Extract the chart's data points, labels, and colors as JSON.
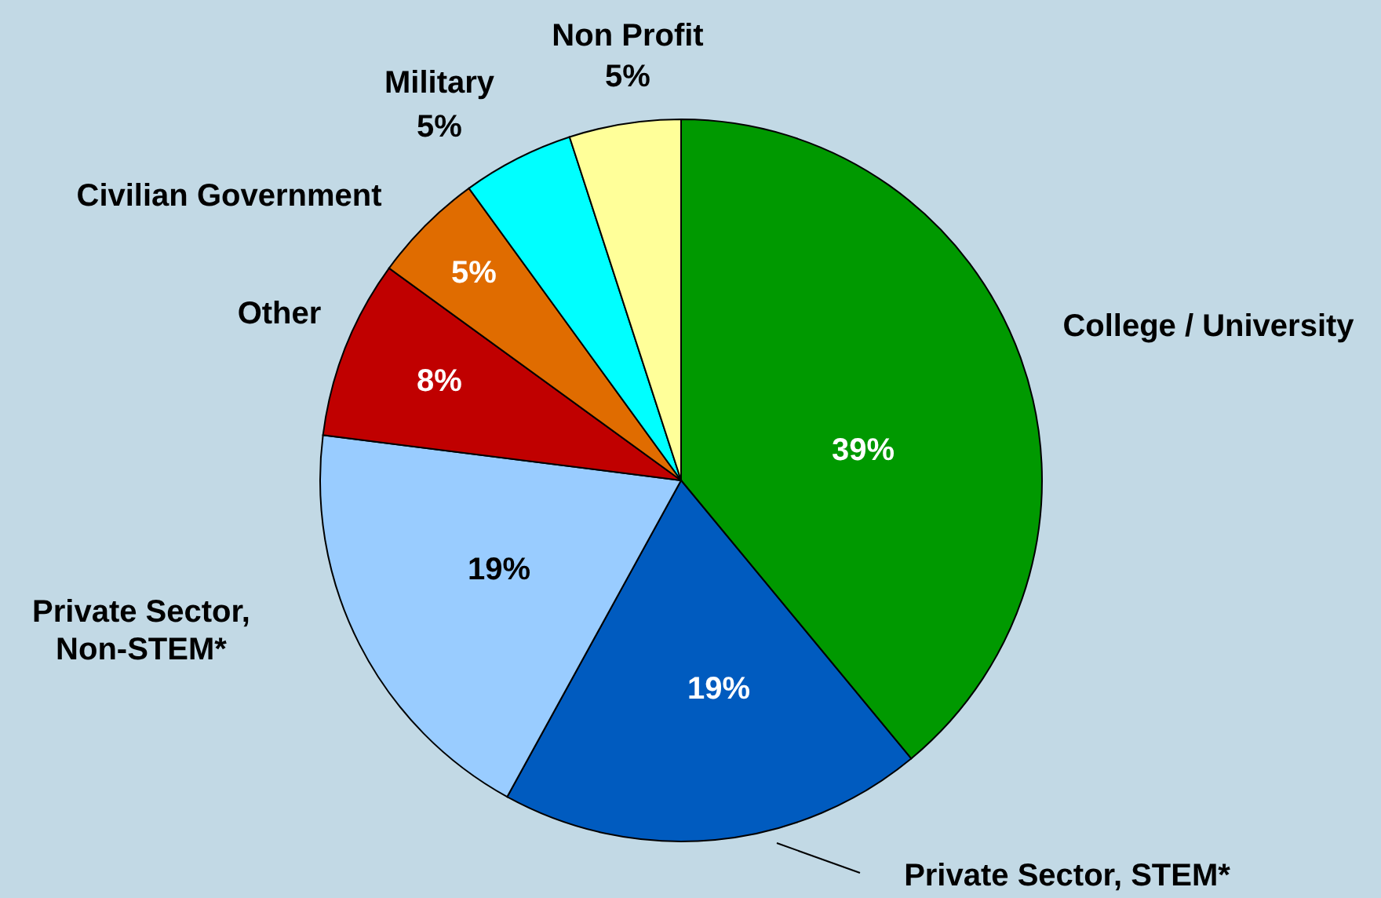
{
  "chart_data": {
    "type": "pie",
    "categories": [
      "College / University",
      "Private Sector, STEM*",
      "Private Sector, Non-STEM*",
      "Other",
      "Civilian Government",
      "Military",
      "Non Profit"
    ],
    "values": [
      39,
      19,
      19,
      8,
      5,
      5,
      5
    ],
    "colors": [
      "#009900",
      "#005bbf",
      "#99ccff",
      "#c00000",
      "#e06c00",
      "#00ffff",
      "#ffff99"
    ],
    "value_labels": [
      "39%",
      "19%",
      "19%",
      "8%",
      "5%",
      "5%",
      "5%"
    ]
  }
}
